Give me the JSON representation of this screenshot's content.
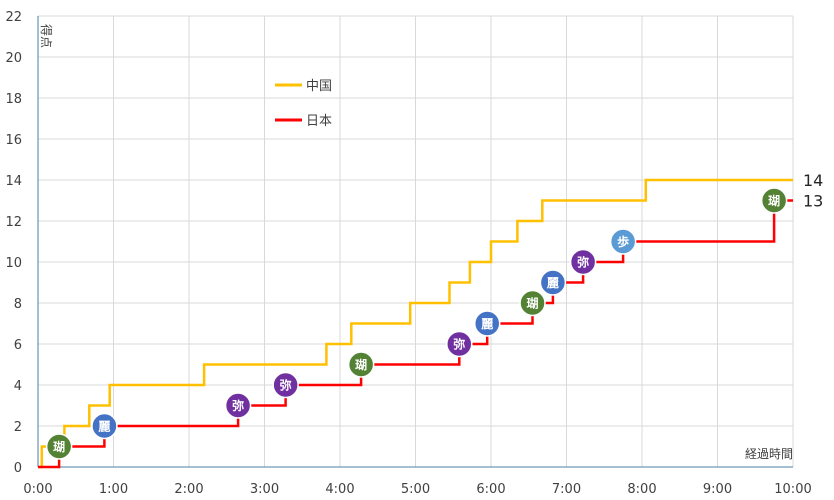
{
  "chart_data": {
    "type": "line",
    "step": true,
    "xlabel": "経過時間",
    "ylabel": "得点",
    "xlim": [
      0,
      10
    ],
    "ylim": [
      0,
      22
    ],
    "x_ticks": [
      "0:00",
      "1:00",
      "2:00",
      "3:00",
      "4:00",
      "5:00",
      "6:00",
      "7:00",
      "8:00",
      "9:00",
      "10:00"
    ],
    "y_ticks": [
      0,
      2,
      4,
      6,
      8,
      10,
      12,
      14,
      16,
      18,
      20,
      22
    ],
    "grid": true,
    "legend_position": "upper-left",
    "series": [
      {
        "name": "中国",
        "color": "#FFC000",
        "end_label": "14",
        "points": [
          [
            0.0,
            0
          ],
          [
            0.05,
            0
          ],
          [
            0.05,
            1
          ],
          [
            0.35,
            1
          ],
          [
            0.35,
            2
          ],
          [
            0.68,
            2
          ],
          [
            0.68,
            3
          ],
          [
            0.95,
            3
          ],
          [
            0.95,
            4
          ],
          [
            2.2,
            4
          ],
          [
            2.2,
            5
          ],
          [
            3.82,
            5
          ],
          [
            3.82,
            6
          ],
          [
            4.15,
            6
          ],
          [
            4.15,
            7
          ],
          [
            4.93,
            7
          ],
          [
            4.93,
            8
          ],
          [
            5.45,
            8
          ],
          [
            5.45,
            9
          ],
          [
            5.72,
            9
          ],
          [
            5.72,
            10
          ],
          [
            6.0,
            10
          ],
          [
            6.0,
            11
          ],
          [
            6.35,
            11
          ],
          [
            6.35,
            12
          ],
          [
            6.68,
            12
          ],
          [
            6.68,
            13
          ],
          [
            8.05,
            13
          ],
          [
            8.05,
            14
          ],
          [
            10.0,
            14
          ]
        ]
      },
      {
        "name": "日本",
        "color": "#FF0000",
        "end_label": "13",
        "points": [
          [
            0.0,
            0
          ],
          [
            0.28,
            0
          ],
          [
            0.28,
            1
          ],
          [
            0.88,
            1
          ],
          [
            0.88,
            2
          ],
          [
            2.65,
            2
          ],
          [
            2.65,
            3
          ],
          [
            3.28,
            3
          ],
          [
            3.28,
            4
          ],
          [
            4.28,
            4
          ],
          [
            4.28,
            5
          ],
          [
            5.58,
            5
          ],
          [
            5.58,
            6
          ],
          [
            5.95,
            6
          ],
          [
            5.95,
            7
          ],
          [
            6.55,
            7
          ],
          [
            6.55,
            8
          ],
          [
            6.82,
            8
          ],
          [
            6.82,
            9
          ],
          [
            7.22,
            9
          ],
          [
            7.22,
            10
          ],
          [
            7.75,
            10
          ],
          [
            7.75,
            11
          ],
          [
            9.75,
            11
          ],
          [
            9.75,
            12
          ],
          [
            9.75,
            13
          ],
          [
            10.0,
            13
          ]
        ]
      }
    ],
    "annotations": [
      {
        "label": "瑚",
        "x": 0.28,
        "y": 1,
        "color": "#548235"
      },
      {
        "label": "麗",
        "x": 0.88,
        "y": 2,
        "color": "#4472C4"
      },
      {
        "label": "弥",
        "x": 2.65,
        "y": 3,
        "color": "#7030A0"
      },
      {
        "label": "弥",
        "x": 3.28,
        "y": 4,
        "color": "#7030A0"
      },
      {
        "label": "瑚",
        "x": 4.28,
        "y": 5,
        "color": "#548235"
      },
      {
        "label": "弥",
        "x": 5.58,
        "y": 6,
        "color": "#7030A0"
      },
      {
        "label": "麗",
        "x": 5.95,
        "y": 7,
        "color": "#4472C4"
      },
      {
        "label": "瑚",
        "x": 6.55,
        "y": 8,
        "color": "#548235"
      },
      {
        "label": "麗",
        "x": 6.82,
        "y": 9,
        "color": "#4472C4"
      },
      {
        "label": "弥",
        "x": 7.22,
        "y": 10,
        "color": "#7030A0"
      },
      {
        "label": "歩",
        "x": 7.75,
        "y": 11,
        "color": "#5B9BD5"
      },
      {
        "label": "瑚",
        "x": 9.75,
        "y": 13,
        "color": "#548235"
      }
    ]
  }
}
